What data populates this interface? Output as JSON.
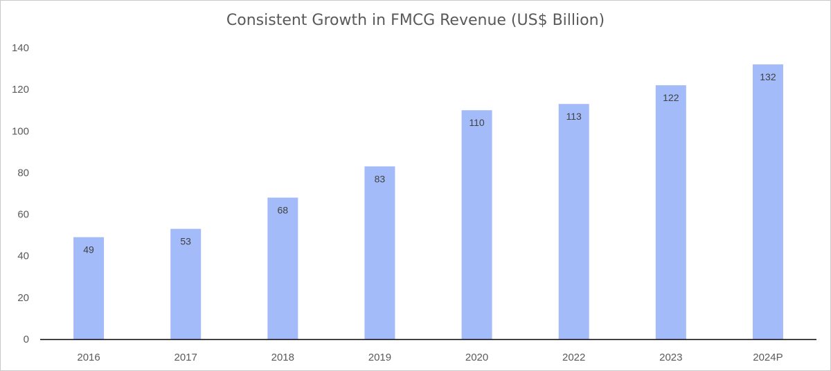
{
  "chart_data": {
    "type": "bar",
    "title": "Consistent Growth in FMCG Revenue (US$ Billion)",
    "xlabel": "",
    "ylabel": "",
    "categories": [
      "2016",
      "2017",
      "2018",
      "2019",
      "2020",
      "2022",
      "2023",
      "2024P"
    ],
    "values": [
      49,
      53,
      68,
      83,
      110,
      113,
      122,
      132
    ],
    "data_labels": [
      "49",
      "53",
      "68",
      "83",
      "110",
      "113",
      "122",
      "132"
    ],
    "ylim": [
      0,
      140
    ],
    "yticks": [
      0,
      20,
      40,
      60,
      80,
      100,
      120,
      140
    ],
    "grid": false,
    "legend": "none",
    "colors": {
      "bar": "#a4bbfa",
      "axis": "#000000",
      "text": "#595959"
    }
  }
}
